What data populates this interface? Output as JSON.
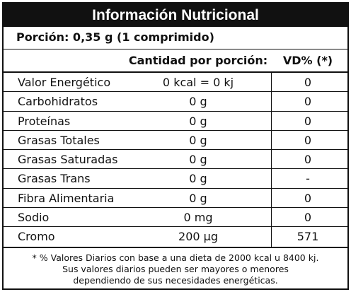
{
  "title": "Información Nutricional",
  "portion": "Porción: 0,35 g (1 comprimido)",
  "headers": {
    "quantity": "Cantidad por porción:",
    "daily_value": "VD% (*)"
  },
  "rows": [
    {
      "name": "Valor Energético",
      "amount": "0 kcal = 0 kj",
      "dv": "0"
    },
    {
      "name": "Carbohidratos",
      "amount": "0 g",
      "dv": "0"
    },
    {
      "name": "Proteínas",
      "amount": "0 g",
      "dv": "0"
    },
    {
      "name": "Grasas Totales",
      "amount": "0 g",
      "dv": "0"
    },
    {
      "name": "Grasas Saturadas",
      "amount": "0 g",
      "dv": "0"
    },
    {
      "name": "Grasas Trans",
      "amount": "0 g",
      "dv": "-"
    },
    {
      "name": "Fibra Alimentaria",
      "amount": "0 g",
      "dv": "0"
    },
    {
      "name": "Sodio",
      "amount": "0 mg",
      "dv": "0"
    },
    {
      "name": "Cromo",
      "amount": "200 µg",
      "dv": "571"
    }
  ],
  "footnote": [
    "* % Valores Diarios con base a una dieta de 2000 kcal u 8400 kj.",
    "Sus valores diarios pueden ser mayores o menores",
    "dependiendo de sus necesidades energéticas."
  ],
  "colors": {
    "title_background": "#111111",
    "title_text": "#ffffff",
    "text": "#111111",
    "background": "#ffffff"
  }
}
